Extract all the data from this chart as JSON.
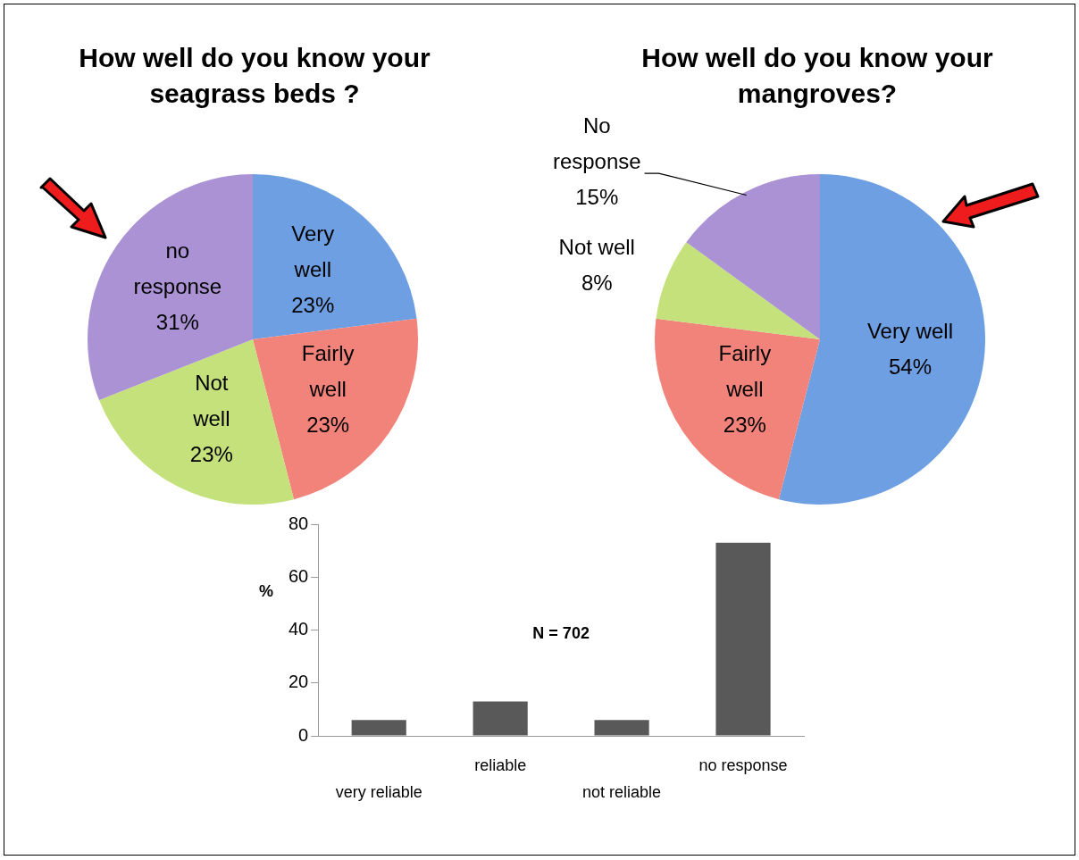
{
  "chart_data": [
    {
      "type": "pie",
      "title": "How well do you know your seagrass beds ?",
      "categories": [
        "Very well",
        "Fairly well",
        "Not well",
        "no response"
      ],
      "values": [
        23,
        23,
        23,
        31
      ],
      "colors": [
        "#6d9fe2",
        "#f2837b",
        "#c5e17c",
        "#aa92d4"
      ],
      "value_labels": [
        "23%",
        "23%",
        "23%",
        "31%"
      ]
    },
    {
      "type": "pie",
      "title": "How well do you know your mangroves?",
      "categories": [
        "Very well",
        "Fairly well",
        "Not well",
        "No response"
      ],
      "values": [
        54,
        23,
        8,
        15
      ],
      "colors": [
        "#6d9fe2",
        "#f2837b",
        "#c5e17c",
        "#aa92d4"
      ],
      "value_labels": [
        "54%",
        "23%",
        "8%",
        "15%"
      ]
    },
    {
      "type": "bar",
      "ylabel": "%",
      "categories": [
        "very reliable",
        "reliable",
        "not reliable",
        "no response"
      ],
      "values": [
        6,
        13,
        6,
        73
      ],
      "color": "#595959",
      "ylim": [
        0,
        80
      ],
      "yticks": [
        0,
        20,
        40,
        60,
        80
      ],
      "grid": false,
      "annotations": [
        "N = 702"
      ]
    }
  ]
}
